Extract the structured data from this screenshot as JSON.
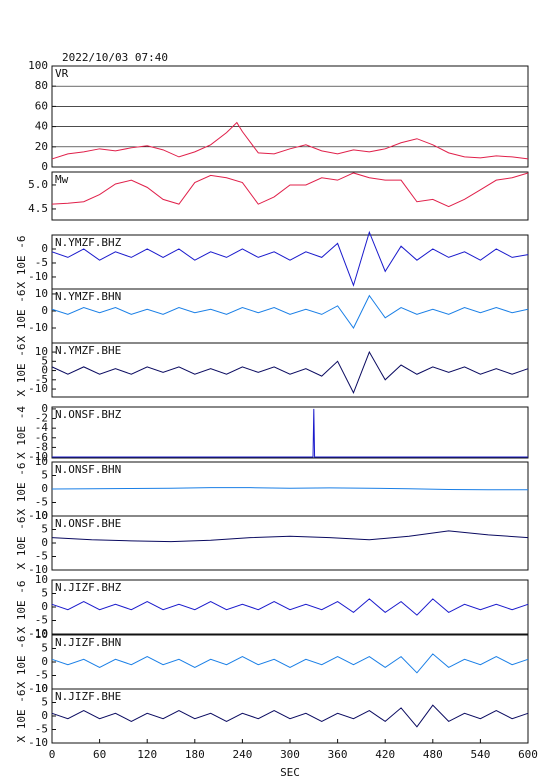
{
  "chart_data": [
    {
      "type": "line",
      "title": "2022/10/03 07:40",
      "label": "VR",
      "color": "#e0204a",
      "x": [
        0,
        20,
        40,
        60,
        80,
        100,
        120,
        140,
        160,
        180,
        200,
        220,
        233,
        240,
        260,
        280,
        300,
        320,
        340,
        360,
        380,
        400,
        420,
        440,
        460,
        480,
        500,
        520,
        540,
        560,
        580,
        600
      ],
      "values": [
        8,
        13,
        15,
        18,
        16,
        19,
        21,
        17,
        10,
        15,
        22,
        34,
        44,
        35,
        14,
        13,
        18,
        22,
        16,
        13,
        17,
        15,
        18,
        24,
        28,
        22,
        14,
        10,
        9,
        11,
        10,
        8
      ],
      "xlim": [
        0,
        600
      ],
      "ylim": [
        0,
        100
      ],
      "yticks": [
        0,
        20,
        40,
        60,
        80,
        100
      ],
      "grid": true
    },
    {
      "type": "line",
      "label": "Mw",
      "color": "#e0204a",
      "x": [
        0,
        20,
        40,
        60,
        80,
        100,
        120,
        140,
        160,
        180,
        200,
        220,
        240,
        260,
        280,
        300,
        320,
        340,
        360,
        380,
        400,
        420,
        440,
        460,
        480,
        500,
        520,
        540,
        560,
        580,
        600
      ],
      "values": [
        4.6,
        4.62,
        4.65,
        4.8,
        5.02,
        5.1,
        4.95,
        4.7,
        4.6,
        5.05,
        5.2,
        5.15,
        5.05,
        4.6,
        4.75,
        5.0,
        5.0,
        5.15,
        5.1,
        5.25,
        5.15,
        5.1,
        5.1,
        4.65,
        4.7,
        4.55,
        4.7,
        4.9,
        5.1,
        5.15,
        5.25
      ],
      "xlim": [
        0,
        600
      ],
      "ylim": [
        4.27,
        5.27
      ],
      "yticks": [
        {
          "value": 4.5,
          "label": "4.5"
        },
        {
          "value": 5,
          "label": "5.0"
        }
      ],
      "grid": false
    },
    {
      "type": "line",
      "label": "N.YMZF.BHZ",
      "ylabel": "X 10E -6",
      "color": "#1a1acc",
      "x": [
        0,
        20,
        40,
        60,
        80,
        100,
        120,
        140,
        160,
        180,
        200,
        220,
        240,
        260,
        280,
        300,
        320,
        340,
        360,
        380,
        400,
        420,
        440,
        460,
        480,
        500,
        520,
        540,
        560,
        580,
        600
      ],
      "values": [
        -1,
        -3,
        0,
        -4,
        -1,
        -3,
        0,
        -3,
        0,
        -4,
        -1,
        -3,
        0,
        -3,
        -1,
        -4,
        -1,
        -3,
        2,
        -13,
        6,
        -8,
        1,
        -4,
        0,
        -3,
        -1,
        -4,
        0,
        -3,
        -2
      ],
      "xlim": [
        0,
        600
      ],
      "ylim": [
        -14.3,
        5
      ],
      "yticks": [
        -10,
        -5,
        0
      ]
    },
    {
      "type": "line",
      "label": "N.YMZF.BHN",
      "ylabel": "X 10E -6",
      "color": "#1a7fe6",
      "x": [
        0,
        20,
        40,
        60,
        80,
        100,
        120,
        140,
        160,
        180,
        200,
        220,
        240,
        260,
        280,
        300,
        320,
        340,
        360,
        380,
        400,
        420,
        440,
        460,
        480,
        500,
        520,
        540,
        560,
        580,
        600
      ],
      "values": [
        1,
        -2,
        2,
        -1,
        2,
        -2,
        1,
        -2,
        2,
        -1,
        1,
        -2,
        2,
        -1,
        2,
        -2,
        1,
        -2,
        3,
        -10,
        9,
        -4,
        2,
        -2,
        1,
        -2,
        2,
        -1,
        2,
        -1,
        1
      ],
      "xlim": [
        0,
        600
      ],
      "ylim": [
        -18.8,
        12.9
      ],
      "yticks": [
        -10,
        0,
        10
      ]
    },
    {
      "type": "line",
      "label": "N.YMZF.BHE",
      "ylabel": "X 10E -6",
      "color": "#0a0a60",
      "x": [
        0,
        20,
        40,
        60,
        80,
        100,
        120,
        140,
        160,
        180,
        200,
        220,
        240,
        260,
        280,
        300,
        320,
        340,
        360,
        380,
        400,
        420,
        440,
        460,
        480,
        500,
        520,
        540,
        560,
        580,
        600
      ],
      "values": [
        2,
        -2,
        2,
        -2,
        1,
        -2,
        2,
        -1,
        2,
        -2,
        1,
        -2,
        2,
        -1,
        2,
        -2,
        1,
        -3,
        5,
        -12,
        10,
        -5,
        3,
        -2,
        2,
        -1,
        2,
        -2,
        1,
        -2,
        1
      ],
      "xlim": [
        0,
        600
      ],
      "ylim": [
        -14.3,
        14.9
      ],
      "yticks": [
        -10,
        -5,
        0,
        5,
        10
      ]
    },
    {
      "type": "line",
      "label": "N.ONSF.BHZ",
      "ylabel": "X 10E -4",
      "color": "#1a1acc",
      "x": [
        0,
        100,
        200,
        300,
        329,
        330,
        331,
        400,
        500,
        600
      ],
      "values": [
        -10,
        -10,
        -10,
        -10,
        -10,
        0,
        -10,
        -10,
        -10,
        -10
      ],
      "xlim": [
        0,
        600
      ],
      "ylim": [
        -10.2,
        0.4
      ],
      "yticks": [
        -10,
        -8,
        -6,
        -4,
        -2,
        0
      ]
    },
    {
      "type": "line",
      "label": "N.ONSF.BHN",
      "ylabel": "X 10E -6",
      "color": "#1a7fe6",
      "x": [
        0,
        50,
        100,
        150,
        200,
        250,
        300,
        350,
        400,
        450,
        500,
        550,
        600
      ],
      "values": [
        0,
        0.1,
        0.2,
        0.3,
        0.5,
        0.5,
        0.3,
        0.4,
        0.3,
        0.1,
        -0.2,
        -0.3,
        -0.3
      ],
      "xlim": [
        0,
        600
      ],
      "ylim": [
        -10,
        10
      ],
      "yticks": [
        -10,
        -5,
        0,
        5,
        10
      ]
    },
    {
      "type": "line",
      "label": "N.ONSF.BHE",
      "ylabel": "X 10E -6",
      "color": "#0a0a60",
      "x": [
        0,
        50,
        100,
        150,
        200,
        250,
        300,
        350,
        400,
        450,
        500,
        550,
        600
      ],
      "values": [
        2,
        1.2,
        0.8,
        0.5,
        1,
        2,
        2.5,
        2,
        1.2,
        2.5,
        4.5,
        3,
        2
      ],
      "xlim": [
        0,
        600
      ],
      "ylim": [
        -10,
        10
      ],
      "yticks": [
        -10,
        -5,
        0,
        5,
        10
      ]
    },
    {
      "type": "line",
      "label": "N.JIZF.BHZ",
      "ylabel": "X 10E -6",
      "color": "#1a1acc",
      "x": [
        0,
        20,
        40,
        60,
        80,
        100,
        120,
        140,
        160,
        180,
        200,
        220,
        240,
        260,
        280,
        300,
        320,
        340,
        360,
        380,
        400,
        420,
        440,
        460,
        480,
        500,
        520,
        540,
        560,
        580,
        600
      ],
      "values": [
        1,
        -1,
        2,
        -1,
        1,
        -1,
        2,
        -1,
        1,
        -1,
        2,
        -1,
        1,
        -1,
        2,
        -1,
        1,
        -1,
        2,
        -2,
        3,
        -2,
        2,
        -3,
        3,
        -2,
        1,
        -1,
        1,
        -1,
        1
      ],
      "xlim": [
        0,
        600
      ],
      "ylim": [
        -10,
        10
      ],
      "yticks": [
        -10,
        -5,
        0,
        5,
        10
      ]
    },
    {
      "type": "line",
      "label": "N.JIZF.BHN",
      "ylabel": "X 10E -6",
      "color": "#1a7fe6",
      "x": [
        0,
        20,
        40,
        60,
        80,
        100,
        120,
        140,
        160,
        180,
        200,
        220,
        240,
        260,
        280,
        300,
        320,
        340,
        360,
        380,
        400,
        420,
        440,
        460,
        480,
        500,
        520,
        540,
        560,
        580,
        600
      ],
      "values": [
        1,
        -1,
        1,
        -2,
        1,
        -1,
        2,
        -1,
        1,
        -2,
        1,
        -1,
        2,
        -1,
        1,
        -2,
        1,
        -1,
        2,
        -1,
        2,
        -2,
        2,
        -4,
        3,
        -2,
        1,
        -1,
        2,
        -1,
        1
      ],
      "xlim": [
        0,
        600
      ],
      "ylim": [
        -10,
        10
      ],
      "yticks": [
        -10,
        -5,
        0,
        5,
        10
      ]
    },
    {
      "type": "line",
      "label": "N.JIZF.BHE",
      "ylabel": "X 10E -6",
      "color": "#0a0a60",
      "x": [
        0,
        20,
        40,
        60,
        80,
        100,
        120,
        140,
        160,
        180,
        200,
        220,
        240,
        260,
        280,
        300,
        320,
        340,
        360,
        380,
        400,
        420,
        440,
        460,
        480,
        500,
        520,
        540,
        560,
        580,
        600
      ],
      "values": [
        1,
        -1,
        2,
        -1,
        1,
        -2,
        1,
        -1,
        2,
        -1,
        1,
        -2,
        1,
        -1,
        2,
        -1,
        1,
        -2,
        1,
        -1,
        2,
        -2,
        3,
        -4,
        4,
        -2,
        1,
        -1,
        2,
        -1,
        1
      ],
      "xlim": [
        0,
        600
      ],
      "ylim": [
        -10,
        10
      ],
      "yticks": [
        -10,
        -5,
        0,
        5,
        10
      ],
      "xticks": [
        0,
        60,
        120,
        180,
        240,
        300,
        360,
        420,
        480,
        540,
        600
      ],
      "xlabel": "SEC"
    }
  ]
}
